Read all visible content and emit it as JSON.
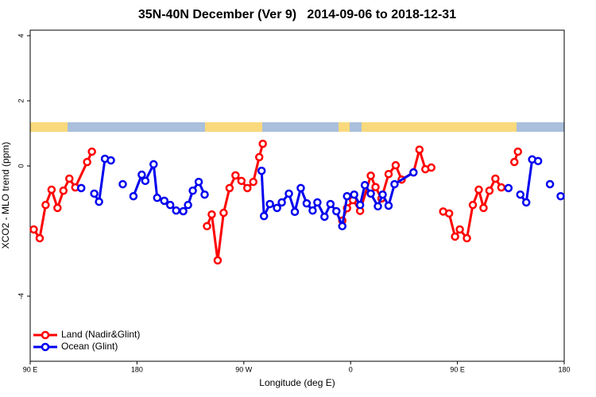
{
  "chart_data": {
    "type": "line",
    "title": "35N-40N December (Ver 9)   2014-09-06 to 2018-12-31",
    "x_label": "Longitude (deg E)",
    "y_label": "XCO2 - MLO trend (ppm)",
    "xlim": [
      90,
      540
    ],
    "xticks": [
      {
        "value": 90,
        "label": "90 E"
      },
      {
        "value": 180,
        "label": "180"
      },
      {
        "value": 270,
        "label": "90 W"
      },
      {
        "value": 360,
        "label": "0"
      },
      {
        "value": 450,
        "label": "90 E"
      },
      {
        "value": 540,
        "label": "180"
      }
    ],
    "ylim": [
      -6,
      4.17
    ],
    "yticks": [
      -4,
      0,
      2,
      4
    ],
    "legend": "bottom-left",
    "series": [
      {
        "name": "Land (Nadir&Glint)",
        "color": "#ff0000",
        "x": [
          93,
          98,
          103,
          108,
          113,
          118,
          123,
          128,
          138,
          142,
          190,
          239,
          243,
          248,
          253,
          258,
          263,
          268,
          273,
          278,
          283,
          286,
          320,
          353,
          357,
          362,
          368,
          377,
          381,
          386,
          392,
          398,
          403,
          413,
          418,
          423,
          428,
          433,
          438,
          443,
          448,
          452,
          458,
          463,
          468,
          472,
          477,
          482,
          487,
          492,
          498,
          501
        ],
        "values": [
          -1.95,
          -2.22,
          -1.2,
          -0.73,
          -1.29,
          -0.76,
          -0.39,
          -0.66,
          0.12,
          0.44,
          null,
          -1.85,
          -1.49,
          -2.9,
          -1.44,
          -0.68,
          -0.29,
          -0.46,
          -0.68,
          -0.49,
          0.27,
          0.68,
          null,
          -1.68,
          -1.3,
          -1.05,
          -1.38,
          -0.3,
          -0.65,
          -1.0,
          -0.25,
          0.02,
          -0.42,
          -0.2,
          0.5,
          -0.1,
          -0.05,
          null,
          -1.4,
          -1.46,
          -2.17,
          -1.95,
          -2.22,
          -1.2,
          -0.73,
          -1.29,
          -0.76,
          -0.39,
          -0.66,
          null,
          0.12,
          0.44
        ]
      },
      {
        "name": "Ocean (Glint)",
        "color": "#0000ee",
        "x": [
          133,
          138,
          144,
          148,
          153,
          158,
          163,
          168,
          172,
          177,
          184,
          187,
          194,
          197,
          203,
          208,
          213,
          219,
          223,
          227,
          232,
          237,
          260,
          285,
          287,
          292,
          298,
          302,
          308,
          313,
          318,
          323,
          328,
          332,
          338,
          343,
          348,
          353,
          357,
          363,
          368,
          372,
          377,
          383,
          387,
          392,
          397,
          413,
          480,
          493,
          498,
          503,
          508,
          513,
          518,
          523,
          528,
          533,
          537
        ],
        "values": [
          -0.68,
          null,
          -0.85,
          -1.1,
          0.22,
          0.17,
          null,
          -0.56,
          null,
          -0.93,
          -0.27,
          -0.46,
          0.05,
          -0.98,
          -1.07,
          -1.2,
          -1.37,
          -1.39,
          -1.2,
          -0.76,
          -0.49,
          -0.88,
          null,
          -0.15,
          -1.54,
          -1.17,
          -1.29,
          -1.12,
          -0.85,
          -1.41,
          -0.68,
          -1.15,
          -1.37,
          -1.12,
          -1.56,
          -1.17,
          -1.39,
          -1.85,
          -0.93,
          -0.88,
          -1.2,
          -0.59,
          -0.85,
          -1.24,
          -0.88,
          -1.22,
          -0.56,
          -0.2,
          null,
          -0.68,
          null,
          -0.88,
          -1.12,
          0.2,
          0.15,
          null,
          -0.56,
          null,
          -0.93
        ]
      }
    ]
  }
}
